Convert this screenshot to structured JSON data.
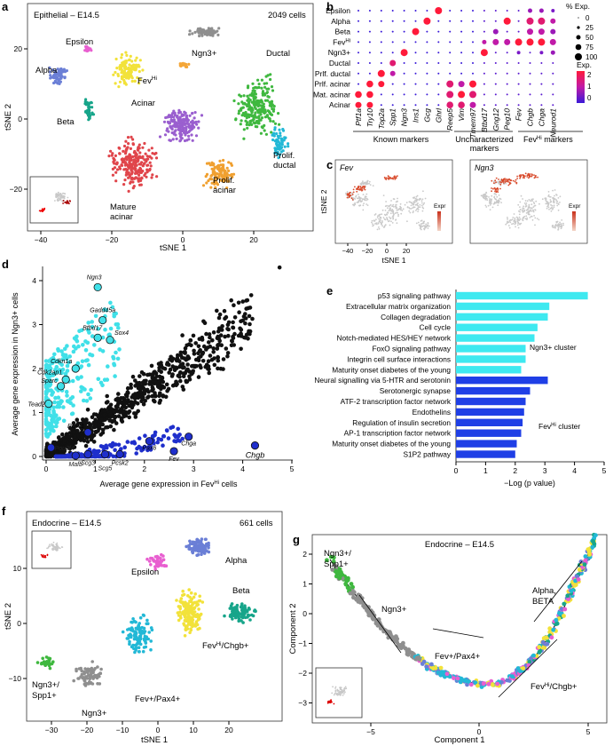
{
  "colors": {
    "epsilon": "#e85fd0",
    "alpha": "#6b7fd6",
    "beta": "#17a58a",
    "ngn3": "#8a8a8a",
    "ductal": "#3fb83f",
    "feV": "#f4a638",
    "acinar": "#9a5fcf",
    "mature_acinar": "#e0454b",
    "prolif_acinar": "#f0a030",
    "prolif_ductal": "#22b8d6",
    "prelim_yellow": "#f2e23a",
    "cyan": "#40e0e8",
    "blue": "#1f2fcc",
    "black": "#111111",
    "bar_cyan": "#3ee9f0",
    "bar_blue": "#1f3fe6"
  },
  "panels": {
    "a": {
      "letter": "a",
      "title": "Epithelial – E14.5",
      "count": "2049 cells",
      "xlabel": "tSNE 1",
      "ylabel": "tSNE 2",
      "xticks": [
        "−40",
        "−20",
        "0",
        "20"
      ],
      "yticks": [
        "20",
        "0",
        "−20"
      ],
      "labels": {
        "alpha": "Alpha",
        "epsilon": "Epsilon",
        "beta": "Beta",
        "ngn3": "Ngn3+",
        "ductal": "Ductal",
        "fev": "Fev",
        "fev_sup": "Hi",
        "acinar": "Acinar",
        "prolif_ductal_1": "Prolif.",
        "prolif_ductal_2": "ductal",
        "prolif_acinar_1": "Prolif.",
        "prolif_acinar_2": "acinar",
        "mature_1": "Mature",
        "mature_2": "acinar"
      }
    },
    "b": {
      "letter": "b",
      "rows": [
        "Epsilon",
        "Alpha",
        "Beta",
        "Fev",
        "Ngn3+",
        "Ductal",
        "Prlf. ductal",
        "Prlf. acinar",
        "Mat. acinar",
        "Acinar"
      ],
      "row_sup": [
        "",
        "",
        "",
        "Hi",
        "",
        "",
        "",
        "",
        "",
        ""
      ],
      "cols": [
        "Ptf1a",
        "Try10",
        "Top2a",
        "Spp1",
        "Ngn3",
        "Ins1",
        "Gcg",
        "Ghrl",
        "Reep5",
        "Vim",
        "Tmem97",
        "Btbd17",
        "Gng12",
        "Peg10",
        "Fev",
        "Chgb",
        "Chga",
        "Neurod1"
      ],
      "groups": [
        "Known markers",
        "Uncharacterized",
        "markers",
        "Fev",
        "Hi",
        " markers"
      ],
      "legend_size_title": "% Exp.",
      "legend_sizes": [
        "0",
        "25",
        "50",
        "75",
        "100"
      ],
      "legend_color_title": "Exp.",
      "legend_color_ticks": [
        "2",
        "1",
        "0"
      ]
    },
    "c": {
      "letter": "c",
      "left_gene": "Fev",
      "right_gene": "Ngn3",
      "xlabel": "tSNE 1",
      "ylabel": "tSNE 2",
      "expr": "Expr",
      "xticks": [
        "−40",
        "−20",
        "0",
        "20"
      ]
    },
    "d": {
      "letter": "d",
      "xlabel_pre": "Average gene expression in Fev",
      "xlabel_sup": "Hi",
      "xlabel_post": " cells",
      "ylabel": "Average gene expression in Ngn3+ cells",
      "xticks": [
        "0",
        "1",
        "2",
        "3",
        "4",
        "5"
      ],
      "yticks": [
        "0",
        "1",
        "2",
        "3",
        "4"
      ],
      "genes": [
        "Ngn3",
        "Gadd45a",
        "Btbd17",
        "Sox4",
        "Cdkn1a",
        "Cdk2ap1",
        "Sparc",
        "Tead2",
        "Pcsk1",
        "Pou3f4",
        "Mafb",
        "Scg3",
        "Scg5",
        "Pcsk2",
        "Pax6",
        "Fev",
        "Chga",
        "Chgb"
      ]
    },
    "e": {
      "letter": "e",
      "xlabel": "−Log (p value)",
      "xticks": [
        "0",
        "1",
        "2",
        "3",
        "4",
        "5"
      ],
      "pathways": [
        "p53 signaling pathway",
        "Extracellular matrix organization",
        "Collagen degradation",
        "Cell cycle",
        "Notch-mediated HES/HEY network",
        "FoxO signaling pathway",
        "Integrin cell surface interactions",
        "Maturity onset diabetes of the young",
        "Neural signalling via 5-HTR and serotonin",
        "Serotonergic synapse",
        "ATF-2 transcription factor network",
        "Endothelins",
        "Regulation of insulin secretion",
        "AP-1 transcription factor network",
        "Maturity onset diabetes of the young",
        "S1P2 pathway"
      ],
      "values": [
        4.45,
        3.15,
        3.1,
        2.75,
        2.65,
        2.35,
        2.35,
        2.2,
        3.1,
        2.5,
        2.35,
        2.3,
        2.25,
        2.2,
        2.05,
        2.0
      ],
      "cluster_ngn3": "Ngn3+ cluster",
      "cluster_fev": "Fev",
      "cluster_fev_sup": "Hi",
      "cluster_fev_post": " cluster"
    },
    "f": {
      "letter": "f",
      "title": "Endocrine – E14.5",
      "count": "661 cells",
      "xlabel": "tSNE 1",
      "ylabel": "tSNE 2",
      "xticks": [
        "−30",
        "−20",
        "−10",
        "0",
        "10",
        "20"
      ],
      "yticks": [
        "10",
        "0",
        "−10"
      ],
      "labels": {
        "epsilon": "Epsilon",
        "alpha": "Alpha",
        "beta": "Beta",
        "fevchgb_pre": "Fev",
        "fevchgb_sup": "Hi",
        "fevchgb_post": "/Chgb+",
        "ngn3spp1_1": "Ngn3+/",
        "ngn3spp1_2": "Spp1+",
        "fevpax4": "Fev+/Pax4+",
        "ngn3": "Ngn3+"
      }
    },
    "g": {
      "letter": "g",
      "title": "Endocrine – E14.5",
      "xlabel": "Component 1",
      "ylabel": "Component 2",
      "xticks": [
        "−5",
        "0",
        "5"
      ],
      "yticks": [
        "2",
        "1",
        "0",
        "−1",
        "−2",
        "−3"
      ],
      "labels": {
        "ngn3spp1_1": "Ngn3+/",
        "ngn3spp1_2": "Spp1+",
        "ngn3": "Ngn3+",
        "fevpax4": "Fev+/Pax4+",
        "alpha_1": "Alpha,",
        "alpha_2": "BETA",
        "fevchgb_pre": "Fev",
        "fevchgb_sup": "Hi",
        "fevchgb_post": "/Chgb+"
      }
    }
  },
  "chart_data": [
    {
      "type": "bar",
      "panel": "e",
      "title": "",
      "categories": [
        "p53 signaling pathway",
        "Extracellular matrix organization",
        "Collagen degradation",
        "Cell cycle",
        "Notch-mediated HES/HEY network",
        "FoxO signaling pathway",
        "Integrin cell surface interactions",
        "Maturity onset diabetes of the young",
        "Neural signalling via 5-HTR and serotonin",
        "Serotonergic synapse",
        "ATF-2 transcription factor network",
        "Endothelins",
        "Regulation of insulin secretion",
        "AP-1 transcription factor network",
        "Maturity onset diabetes of the young",
        "S1P2 pathway"
      ],
      "values": [
        4.45,
        3.15,
        3.1,
        2.75,
        2.65,
        2.35,
        2.35,
        2.2,
        3.1,
        2.5,
        2.35,
        2.3,
        2.25,
        2.2,
        2.05,
        2.0
      ],
      "xlabel": "−Log (p value)",
      "xlim": [
        0,
        5
      ]
    },
    {
      "type": "scatter",
      "panel": "d",
      "xlim": [
        0,
        5
      ],
      "ylim": [
        0,
        4.4
      ],
      "highlighted": [
        {
          "gene": "Ngn3",
          "x": 1.05,
          "y": 3.85
        },
        {
          "gene": "Gadd45a",
          "x": 1.15,
          "y": 3.1
        },
        {
          "gene": "Btbd17",
          "x": 1.05,
          "y": 2.7
        },
        {
          "gene": "Sox4",
          "x": 1.3,
          "y": 2.65
        },
        {
          "gene": "Cdkn1a",
          "x": 0.6,
          "y": 2.0
        },
        {
          "gene": "Cdk2ap1",
          "x": 0.4,
          "y": 1.75
        },
        {
          "gene": "Sparc",
          "x": 0.3,
          "y": 1.6
        },
        {
          "gene": "Tead2",
          "x": 0.05,
          "y": 1.2
        },
        {
          "gene": "Pcsk1",
          "x": 0.85,
          "y": 0.55
        },
        {
          "gene": "Pou3f4",
          "x": 0.1,
          "y": 0.2
        },
        {
          "gene": "Mafb",
          "x": 0.6,
          "y": 0.02
        },
        {
          "gene": "Scg3",
          "x": 0.85,
          "y": 0.05
        },
        {
          "gene": "Scg5",
          "x": 1.2,
          "y": 0.05
        },
        {
          "gene": "Pcsk2",
          "x": 1.5,
          "y": 0.05
        },
        {
          "gene": "Pax6",
          "x": 2.1,
          "y": 0.35
        },
        {
          "gene": "Fev",
          "x": 2.6,
          "y": 0.12
        },
        {
          "gene": "Chga",
          "x": 2.9,
          "y": 0.45
        },
        {
          "gene": "Chgb",
          "x": 4.25,
          "y": 0.25
        }
      ]
    }
  ]
}
